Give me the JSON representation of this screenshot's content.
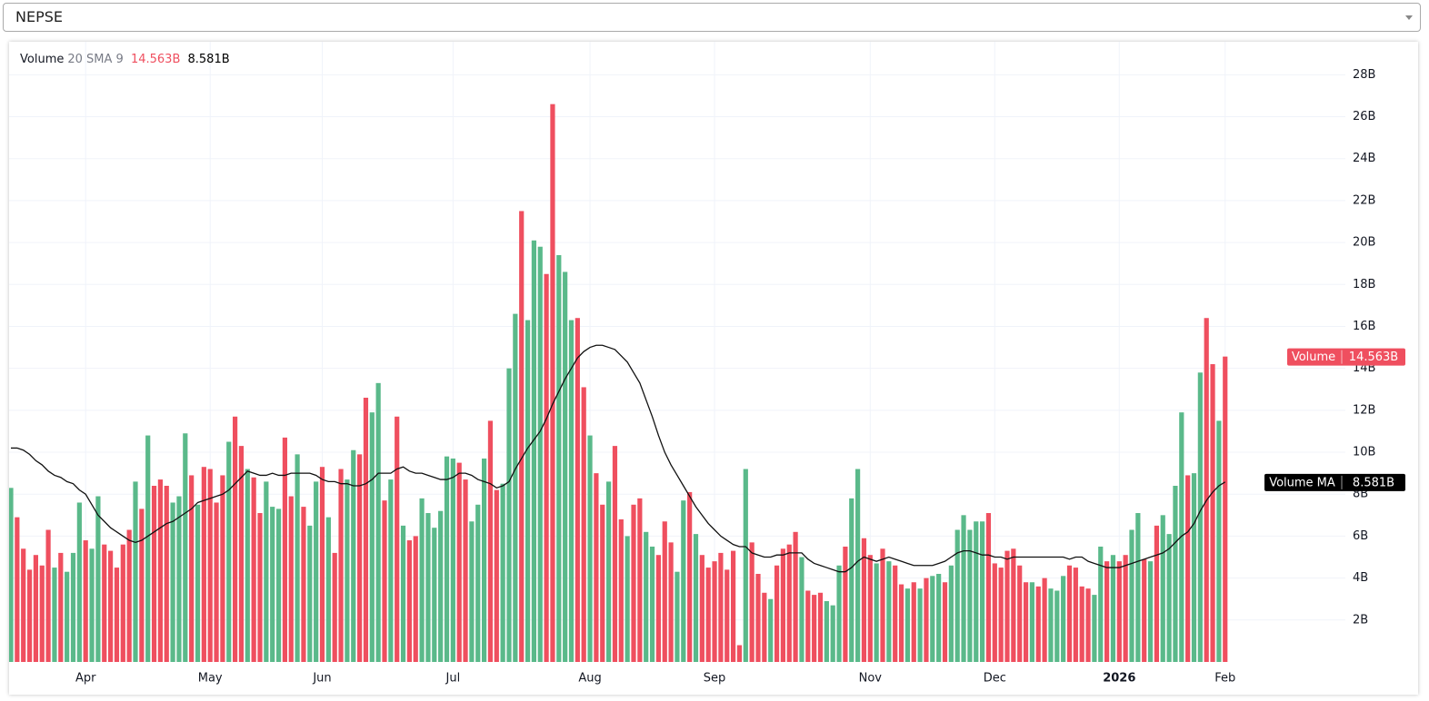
{
  "header": {
    "symbol": "NEPSE"
  },
  "chart_data": {
    "type": "bar",
    "indicator_params": "20 SMA 9",
    "categories": [
      null,
      null,
      null,
      null,
      null,
      null,
      null,
      null,
      null,
      null,
      null,
      null,
      "Apr",
      null,
      null,
      null,
      null,
      null,
      null,
      null,
      null,
      null,
      null,
      null,
      null,
      null,
      null,
      null,
      null,
      null,
      null,
      null,
      "May",
      null,
      null,
      null,
      null,
      null,
      null,
      null,
      null,
      null,
      null,
      null,
      null,
      null,
      null,
      null,
      null,
      null,
      "Jun",
      null,
      null,
      null,
      null,
      null,
      null,
      null,
      null,
      null,
      null,
      null,
      null,
      null,
      null,
      null,
      null,
      null,
      null,
      null,
      null,
      "Jul",
      null,
      null,
      null,
      null,
      null,
      null,
      null,
      null,
      null,
      null,
      null,
      null,
      null,
      null,
      null,
      null,
      null,
      null,
      null,
      null,
      null,
      "Aug",
      null,
      null,
      null,
      null,
      null,
      null,
      null,
      null,
      null,
      null,
      null,
      null,
      null,
      null,
      null,
      null,
      null,
      null,
      null,
      "Sep",
      null,
      null,
      null,
      null,
      null,
      null,
      null,
      null,
      null,
      null,
      null,
      null,
      null,
      null,
      null,
      null,
      null,
      null,
      null,
      null,
      null,
      null,
      null,
      null,
      "Nov",
      null,
      null,
      null,
      null,
      null,
      null,
      null,
      null,
      null,
      null,
      null,
      null,
      null,
      null,
      null,
      null,
      null,
      null,
      null,
      "Dec",
      null,
      null,
      null,
      null,
      null,
      null,
      null,
      null,
      null,
      null,
      null,
      null,
      null,
      null,
      null,
      null,
      null,
      null,
      null,
      "2026",
      null,
      null,
      null,
      null,
      null,
      null,
      null,
      null,
      null,
      null,
      null,
      null,
      null,
      null,
      null,
      null,
      "Feb"
    ],
    "series": [
      {
        "name": "Volume",
        "last_value_label": "14.563B",
        "label_color": "#ef4f5f",
        "values": [
          8.3,
          6.9,
          5.4,
          4.4,
          5.1,
          4.6,
          6.3,
          4.5,
          5.2,
          4.3,
          5.2,
          7.6,
          5.8,
          5.4,
          7.9,
          5.6,
          5.3,
          4.5,
          5.6,
          6.3,
          8.6,
          7.3,
          10.8,
          8.4,
          8.7,
          8.4,
          7.6,
          7.9,
          10.9,
          8.9,
          7.5,
          9.3,
          9.2,
          7.6,
          8.9,
          10.5,
          11.7,
          10.3,
          9.2,
          8.8,
          7.1,
          8.6,
          7.4,
          7.3,
          10.7,
          7.9,
          9.9,
          7.4,
          6.5,
          8.6,
          9.3,
          6.9,
          5.2,
          9.2,
          8.7,
          10.1,
          9.9,
          12.6,
          11.9,
          13.3,
          7.7,
          8.7,
          11.7,
          6.5,
          5.8,
          6.0,
          7.8,
          7.1,
          6.4,
          7.2,
          9.8,
          9.7,
          9.5,
          8.7,
          6.7,
          7.5,
          9.7,
          11.5,
          8.2,
          8.5,
          14.0,
          16.6,
          21.5,
          16.3,
          20.1,
          19.8,
          18.5,
          26.6,
          19.4,
          18.6,
          16.3,
          16.4,
          13.1,
          10.8,
          9.0,
          7.5,
          8.6,
          10.3,
          6.8,
          6.0,
          7.5,
          7.8,
          6.2,
          5.5,
          5.1,
          6.7,
          5.7,
          4.3,
          7.7,
          8.1,
          6.1,
          5.1,
          4.5,
          4.8,
          5.2,
          4.4,
          5.3,
          0.8,
          9.2,
          5.7,
          4.2,
          3.3,
          3.0,
          4.6,
          5.4,
          5.6,
          6.2,
          5.0,
          3.4,
          3.2,
          3.3,
          2.9,
          2.7,
          4.6,
          5.5,
          7.8,
          9.2,
          5.9,
          5.1,
          4.7,
          5.4,
          4.8,
          4.6,
          3.7,
          3.5,
          3.8,
          3.5,
          4.0,
          4.1,
          4.2,
          3.8,
          4.6,
          6.3,
          7.0,
          6.3,
          6.7,
          6.7,
          7.1,
          4.7,
          4.5,
          5.3,
          5.4,
          4.6,
          3.8,
          3.8,
          3.6,
          4.0,
          3.5,
          3.4,
          4.1,
          4.6,
          4.5,
          3.6,
          3.5,
          3.2,
          5.5,
          4.8,
          5.1,
          4.8,
          5.1,
          6.3,
          7.1,
          4.9,
          4.8,
          6.5,
          7.0,
          6.1,
          8.4,
          11.9,
          8.9,
          9.0,
          13.8,
          16.4,
          14.2,
          11.5,
          14.563
        ],
        "colors": [
          "#5ab98a",
          "#ef4f5f",
          "#ef4f5f",
          "#ef4f5f",
          "#ef4f5f",
          "#ef4f5f",
          "#ef4f5f",
          "#5ab98a",
          "#ef4f5f",
          "#5ab98a",
          "#5ab98a",
          "#5ab98a",
          "#ef4f5f",
          "#5ab98a",
          "#5ab98a",
          "#ef4f5f",
          "#ef4f5f",
          "#ef4f5f",
          "#ef4f5f",
          "#ef4f5f",
          "#5ab98a",
          "#ef4f5f",
          "#5ab98a",
          "#ef4f5f",
          "#ef4f5f",
          "#ef4f5f",
          "#5ab98a",
          "#5ab98a",
          "#5ab98a",
          "#ef4f5f",
          "#5ab98a",
          "#ef4f5f",
          "#ef4f5f",
          "#ef4f5f",
          "#ef4f5f",
          "#5ab98a",
          "#ef4f5f",
          "#ef4f5f",
          "#5ab98a",
          "#ef4f5f",
          "#ef4f5f",
          "#5ab98a",
          "#5ab98a",
          "#5ab98a",
          "#ef4f5f",
          "#ef4f5f",
          "#5ab98a",
          "#ef4f5f",
          "#5ab98a",
          "#5ab98a",
          "#ef4f5f",
          "#5ab98a",
          "#ef4f5f",
          "#ef4f5f",
          "#5ab98a",
          "#5ab98a",
          "#ef4f5f",
          "#ef4f5f",
          "#5ab98a",
          "#5ab98a",
          "#ef4f5f",
          "#5ab98a",
          "#ef4f5f",
          "#5ab98a",
          "#ef4f5f",
          "#ef4f5f",
          "#5ab98a",
          "#5ab98a",
          "#5ab98a",
          "#5ab98a",
          "#5ab98a",
          "#5ab98a",
          "#ef4f5f",
          "#ef4f5f",
          "#5ab98a",
          "#5ab98a",
          "#5ab98a",
          "#ef4f5f",
          "#ef4f5f",
          "#5ab98a",
          "#5ab98a",
          "#5ab98a",
          "#ef4f5f",
          "#5ab98a",
          "#5ab98a",
          "#5ab98a",
          "#ef4f5f",
          "#ef4f5f",
          "#5ab98a",
          "#5ab98a",
          "#5ab98a",
          "#ef4f5f",
          "#ef4f5f",
          "#5ab98a",
          "#ef4f5f",
          "#ef4f5f",
          "#5ab98a",
          "#ef4f5f",
          "#ef4f5f",
          "#5ab98a",
          "#ef4f5f",
          "#ef4f5f",
          "#5ab98a",
          "#5ab98a",
          "#ef4f5f",
          "#ef4f5f",
          "#ef4f5f",
          "#5ab98a",
          "#5ab98a",
          "#ef4f5f",
          "#5ab98a",
          "#ef4f5f",
          "#ef4f5f",
          "#ef4f5f",
          "#ef4f5f",
          "#ef4f5f",
          "#ef4f5f",
          "#ef4f5f",
          "#5ab98a",
          "#ef4f5f",
          "#ef4f5f",
          "#ef4f5f",
          "#5ab98a",
          "#ef4f5f",
          "#ef4f5f",
          "#ef4f5f",
          "#ef4f5f",
          "#5ab98a",
          "#ef4f5f",
          "#ef4f5f",
          "#ef4f5f",
          "#5ab98a",
          "#5ab98a",
          "#5ab98a",
          "#ef4f5f",
          "#5ab98a",
          "#5ab98a",
          "#ef4f5f",
          "#ef4f5f",
          "#5ab98a",
          "#ef4f5f",
          "#5ab98a",
          "#ef4f5f",
          "#ef4f5f",
          "#5ab98a",
          "#ef4f5f",
          "#5ab98a",
          "#ef4f5f",
          "#5ab98a",
          "#5ab98a",
          "#ef4f5f",
          "#5ab98a",
          "#5ab98a",
          "#5ab98a",
          "#5ab98a",
          "#5ab98a",
          "#5ab98a",
          "#ef4f5f",
          "#ef4f5f",
          "#ef4f5f",
          "#ef4f5f",
          "#ef4f5f",
          "#ef4f5f",
          "#ef4f5f",
          "#5ab98a",
          "#ef4f5f",
          "#ef4f5f",
          "#5ab98a",
          "#5ab98a",
          "#5ab98a",
          "#ef4f5f",
          "#ef4f5f",
          "#ef4f5f",
          "#ef4f5f",
          "#5ab98a",
          "#5ab98a",
          "#ef4f5f",
          "#5ab98a",
          "#ef4f5f",
          "#ef4f5f",
          "#5ab98a",
          "#5ab98a",
          "#ef4f5f",
          "#5ab98a",
          "#ef4f5f",
          "#5ab98a",
          "#5ab98a",
          "#5ab98a",
          "#5ab98a",
          "#ef4f5f",
          "#5ab98a",
          "#5ab98a",
          "#ef4f5f",
          "#ef4f5f",
          "#5ab98a",
          "#ef4f5f"
        ]
      },
      {
        "name": "Volume MA",
        "type": "line",
        "color": "#111111",
        "last_value_label": "8.581B",
        "label_color": "#000000",
        "values": [
          10.2,
          10.2,
          10.1,
          9.9,
          9.6,
          9.4,
          9.1,
          8.9,
          8.8,
          8.6,
          8.5,
          8.2,
          8.0,
          7.5,
          7.0,
          6.7,
          6.4,
          6.2,
          6.0,
          5.8,
          5.7,
          5.8,
          6.0,
          6.2,
          6.4,
          6.6,
          6.7,
          6.9,
          7.1,
          7.3,
          7.6,
          7.7,
          7.8,
          7.9,
          8.0,
          8.2,
          8.5,
          8.8,
          9.1,
          9.0,
          8.9,
          8.9,
          9.0,
          8.9,
          8.9,
          9.0,
          9.0,
          9.0,
          9.0,
          8.9,
          8.7,
          8.6,
          8.6,
          8.5,
          8.5,
          8.4,
          8.4,
          8.5,
          8.7,
          9.0,
          9.0,
          9.0,
          9.2,
          9.3,
          9.1,
          9.0,
          9.0,
          8.9,
          8.8,
          8.7,
          8.7,
          8.8,
          9.0,
          9.0,
          8.9,
          8.7,
          8.6,
          8.5,
          8.3,
          8.4,
          8.6,
          9.2,
          9.7,
          10.2,
          10.6,
          11.0,
          11.6,
          12.3,
          12.9,
          13.5,
          14.0,
          14.5,
          14.8,
          15.0,
          15.1,
          15.1,
          15.0,
          14.9,
          14.6,
          14.3,
          13.8,
          13.3,
          12.5,
          11.7,
          10.8,
          10.0,
          9.4,
          8.9,
          8.4,
          7.9,
          7.4,
          7.0,
          6.6,
          6.3,
          6.0,
          5.8,
          5.6,
          5.5,
          5.5,
          5.2,
          5.1,
          5.0,
          5.0,
          5.1,
          5.1,
          5.2,
          5.2,
          5.2,
          4.9,
          4.7,
          4.6,
          4.5,
          4.4,
          4.3,
          4.3,
          4.5,
          4.8,
          5.0,
          4.9,
          4.8,
          4.9,
          5.0,
          4.9,
          4.8,
          4.7,
          4.6,
          4.6,
          4.6,
          4.6,
          4.7,
          4.8,
          5.0,
          5.2,
          5.3,
          5.3,
          5.2,
          5.1,
          5.1,
          5.0,
          5.0,
          4.9,
          5.0,
          5.0,
          5.0,
          5.0,
          5.0,
          5.0,
          5.0,
          5.0,
          5.0,
          4.9,
          5.0,
          5.0,
          4.8,
          4.7,
          4.6,
          4.5,
          4.5,
          4.5,
          4.6,
          4.7,
          4.8,
          4.9,
          5.0,
          5.1,
          5.2,
          5.4,
          5.7,
          6.0,
          6.2,
          6.6,
          7.2,
          7.7,
          8.1,
          8.4,
          8.581
        ]
      }
    ],
    "ylim": [
      0,
      29.4
    ],
    "yticks": [
      {
        "value": 2,
        "label": "2B"
      },
      {
        "value": 4,
        "label": "4B"
      },
      {
        "value": 6,
        "label": "6B"
      },
      {
        "value": 8,
        "label": "8B"
      },
      {
        "value": 10,
        "label": "10B"
      },
      {
        "value": 12,
        "label": "12B"
      },
      {
        "value": 14,
        "label": "14B"
      },
      {
        "value": 16,
        "label": "16B"
      },
      {
        "value": 18,
        "label": "18B"
      },
      {
        "value": 20,
        "label": "20B"
      },
      {
        "value": 22,
        "label": "22B"
      },
      {
        "value": 24,
        "label": "24B"
      },
      {
        "value": 26,
        "label": "26B"
      },
      {
        "value": 28,
        "label": "28B"
      }
    ],
    "grid": true
  }
}
